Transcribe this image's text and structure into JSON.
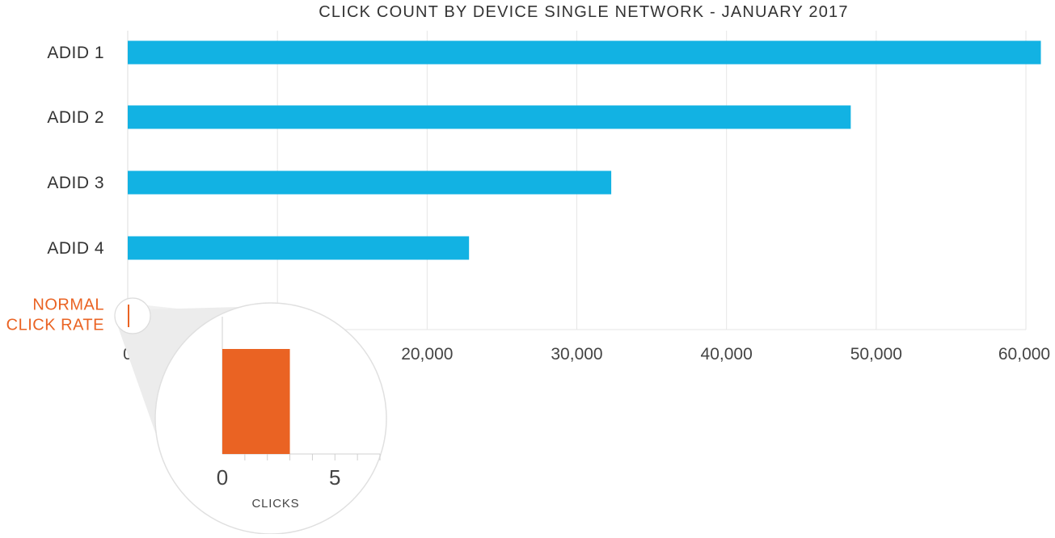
{
  "chart_data": [
    {
      "type": "bar",
      "orientation": "horizontal",
      "title": "CLICK COUNT BY DEVICE SINGLE NETWORK - JANUARY 2017",
      "categories": [
        "ADID 1",
        "ADID 2",
        "ADID 3",
        "ADID 4",
        "NORMAL CLICK RATE"
      ],
      "category_lines": [
        [
          "ADID 1"
        ],
        [
          "ADID 2"
        ],
        [
          "ADID 3"
        ],
        [
          "ADID 4"
        ],
        [
          "NORMAL",
          "CLICK RATE"
        ]
      ],
      "values": [
        61000,
        48300,
        32300,
        22800,
        3
      ],
      "colors": [
        "#12B2E3",
        "#12B2E3",
        "#12B2E3",
        "#12B2E3",
        "#EA6323"
      ],
      "xlim": [
        0,
        60000
      ],
      "xticks": [
        "0",
        "",
        "20,000",
        "30,000",
        "40,000",
        "50,000",
        "60,000"
      ],
      "grid": true
    },
    {
      "type": "bar",
      "title": "",
      "xlabel": "CLICKS",
      "values": [
        3
      ],
      "xlim": [
        0,
        7
      ],
      "xticks": [
        "0",
        "5"
      ],
      "color": "#EA6323"
    }
  ]
}
